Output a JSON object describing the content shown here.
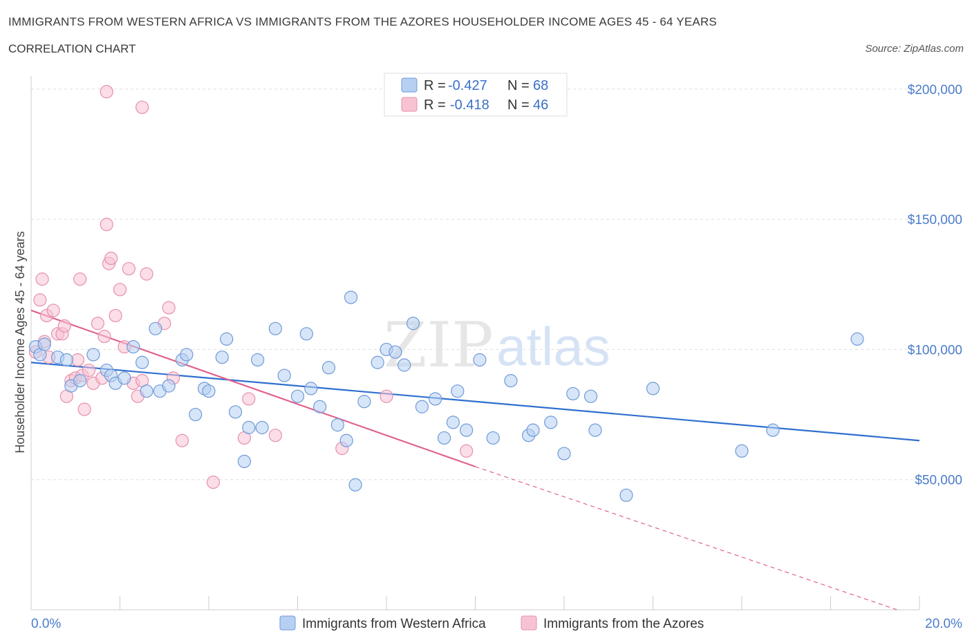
{
  "title": "IMMIGRANTS FROM WESTERN AFRICA VS IMMIGRANTS FROM THE AZORES HOUSEHOLDER INCOME AGES 45 - 64 YEARS",
  "subtitle": "CORRELATION CHART",
  "source": "Source: ZipAtlas.com",
  "watermark": {
    "zip": "ZIP",
    "atlas": "atlas"
  },
  "colors": {
    "blue": "#2f6fcf",
    "blue_fill": "#b7d0f2",
    "blue_stroke": "#6e9ad8",
    "pink": "#e0628e",
    "pink_fill": "#f7c3d3",
    "pink_stroke": "#e68fac",
    "grid": "#dddddd",
    "axis_text": "#4a7cc9"
  },
  "legend": {
    "rows": [
      {
        "r_label": "R = ",
        "r_value": "-0.427",
        "n_label": "N = ",
        "n_value": "68"
      },
      {
        "r_label": "R = ",
        "r_value": "-0.418",
        "n_label": "N = ",
        "n_value": "46"
      }
    ]
  },
  "chart_data": {
    "type": "scatter",
    "title": "IMMIGRANTS FROM WESTERN AFRICA VS IMMIGRANTS FROM THE AZORES HOUSEHOLDER INCOME AGES 45 - 64 YEARS",
    "xlabel": "",
    "ylabel": "Householder Income Ages 45 - 64 years",
    "xlim": [
      0,
      20
    ],
    "ylim": [
      0,
      205000
    ],
    "x_tick_labels": [
      "0.0%",
      "20.0%"
    ],
    "y_ticks": [
      50000,
      100000,
      150000,
      200000
    ],
    "y_tick_labels": [
      "$50,000",
      "$100,000",
      "$150,000",
      "$200,000"
    ],
    "grid": true,
    "legend_position": "bottom",
    "series": [
      {
        "name": "Immigrants from Western Africa",
        "color": "#2f6fcf",
        "trend": {
          "x0": 0,
          "y0": 95000,
          "x1": 20,
          "y1": 65000
        },
        "points": [
          [
            0.1,
            101000
          ],
          [
            0.2,
            98000
          ],
          [
            0.3,
            102000
          ],
          [
            0.6,
            97000
          ],
          [
            0.8,
            96000
          ],
          [
            0.9,
            86000
          ],
          [
            1.1,
            88000
          ],
          [
            1.4,
            98000
          ],
          [
            1.7,
            92000
          ],
          [
            1.8,
            90000
          ],
          [
            1.9,
            87000
          ],
          [
            2.1,
            89000
          ],
          [
            2.3,
            101000
          ],
          [
            2.5,
            95000
          ],
          [
            2.6,
            84000
          ],
          [
            2.8,
            108000
          ],
          [
            2.9,
            84000
          ],
          [
            3.1,
            86000
          ],
          [
            3.4,
            96000
          ],
          [
            3.5,
            98000
          ],
          [
            3.7,
            75000
          ],
          [
            3.9,
            85000
          ],
          [
            4.0,
            84000
          ],
          [
            4.3,
            97000
          ],
          [
            4.4,
            104000
          ],
          [
            4.6,
            76000
          ],
          [
            4.8,
            57000
          ],
          [
            4.9,
            70000
          ],
          [
            5.1,
            96000
          ],
          [
            5.2,
            70000
          ],
          [
            5.5,
            108000
          ],
          [
            5.7,
            90000
          ],
          [
            6.0,
            82000
          ],
          [
            6.2,
            106000
          ],
          [
            6.3,
            85000
          ],
          [
            6.5,
            78000
          ],
          [
            6.7,
            93000
          ],
          [
            6.9,
            71000
          ],
          [
            7.1,
            65000
          ],
          [
            7.2,
            120000
          ],
          [
            7.3,
            48000
          ],
          [
            7.5,
            80000
          ],
          [
            7.8,
            95000
          ],
          [
            8.0,
            100000
          ],
          [
            8.2,
            99000
          ],
          [
            8.4,
            94000
          ],
          [
            8.6,
            110000
          ],
          [
            8.8,
            78000
          ],
          [
            9.1,
            81000
          ],
          [
            9.3,
            66000
          ],
          [
            9.5,
            72000
          ],
          [
            9.6,
            84000
          ],
          [
            9.8,
            69000
          ],
          [
            10.1,
            96000
          ],
          [
            10.4,
            66000
          ],
          [
            10.8,
            88000
          ],
          [
            11.2,
            67000
          ],
          [
            11.3,
            69000
          ],
          [
            11.7,
            72000
          ],
          [
            12.0,
            60000
          ],
          [
            12.2,
            83000
          ],
          [
            12.6,
            82000
          ],
          [
            12.7,
            69000
          ],
          [
            13.4,
            44000
          ],
          [
            14.0,
            85000
          ],
          [
            16.0,
            61000
          ],
          [
            16.7,
            69000
          ],
          [
            18.6,
            104000
          ]
        ]
      },
      {
        "name": "Immigrants from the Azores",
        "color": "#e0628e",
        "trend": {
          "x0": 0,
          "y0": 115000,
          "x1": 10,
          "y1": 55000,
          "dash_to_x": 19.5,
          "dash_to_y": 0
        },
        "points": [
          [
            0.1,
            99000
          ],
          [
            0.2,
            119000
          ],
          [
            0.25,
            127000
          ],
          [
            0.3,
            103000
          ],
          [
            0.35,
            113000
          ],
          [
            0.4,
            97000
          ],
          [
            0.5,
            115000
          ],
          [
            0.6,
            106000
          ],
          [
            0.7,
            106000
          ],
          [
            0.75,
            109000
          ],
          [
            0.8,
            82000
          ],
          [
            0.9,
            88000
          ],
          [
            1.0,
            89000
          ],
          [
            1.05,
            96000
          ],
          [
            1.1,
            127000
          ],
          [
            1.15,
            90000
          ],
          [
            1.2,
            77000
          ],
          [
            1.3,
            92000
          ],
          [
            1.4,
            87000
          ],
          [
            1.5,
            110000
          ],
          [
            1.6,
            89000
          ],
          [
            1.65,
            105000
          ],
          [
            1.7,
            148000
          ],
          [
            1.75,
            133000
          ],
          [
            1.8,
            135000
          ],
          [
            1.9,
            113000
          ],
          [
            2.0,
            123000
          ],
          [
            2.1,
            101000
          ],
          [
            2.2,
            131000
          ],
          [
            2.3,
            87000
          ],
          [
            2.4,
            82000
          ],
          [
            2.5,
            88000
          ],
          [
            2.6,
            129000
          ],
          [
            3.0,
            110000
          ],
          [
            3.1,
            116000
          ],
          [
            3.2,
            89000
          ],
          [
            3.4,
            65000
          ],
          [
            4.1,
            49000
          ],
          [
            4.8,
            66000
          ],
          [
            4.9,
            81000
          ],
          [
            5.5,
            67000
          ],
          [
            7.0,
            62000
          ],
          [
            8.0,
            82000
          ],
          [
            9.8,
            61000
          ],
          [
            1.7,
            199000
          ],
          [
            2.5,
            193000
          ]
        ]
      }
    ]
  }
}
